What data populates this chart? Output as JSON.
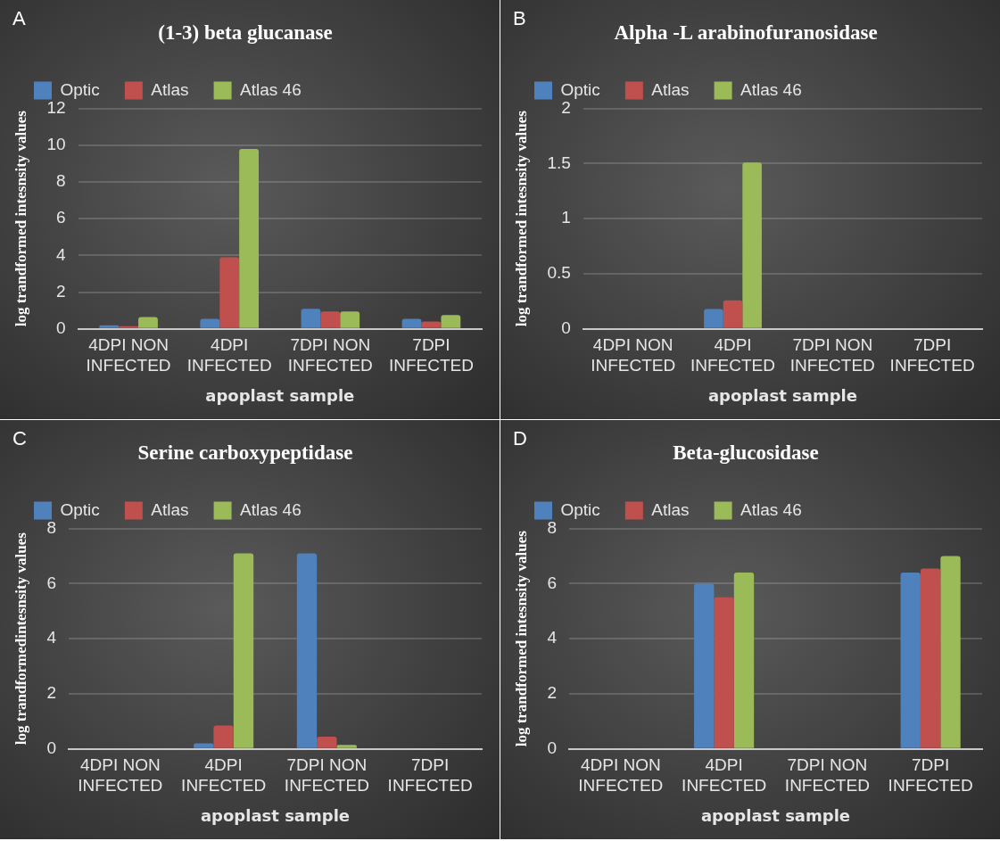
{
  "chart_data": [
    {
      "type": "bar",
      "title": "(1-3) beta glucanase",
      "xlabel": "apoplast sample",
      "ylabel": "log trandformed intesnsity values",
      "annotations": [
        "A"
      ],
      "categories": [
        "4DPI NON INFECTED",
        "4DPI INFECTED",
        "7DPI NON INFECTED",
        "7DPI INFECTED"
      ],
      "series": [
        {
          "name": "Optic",
          "color": "#4f81bd",
          "values": [
            0.2,
            0.55,
            1.1,
            0.55
          ]
        },
        {
          "name": "Atlas",
          "color": "#c0504d",
          "values": [
            0.15,
            3.9,
            0.95,
            0.4
          ]
        },
        {
          "name": "Atlas 46",
          "color": "#9bbb59",
          "values": [
            0.65,
            9.8,
            0.95,
            0.75
          ]
        }
      ],
      "ylim": [
        0,
        12
      ],
      "yticks": [
        0,
        2,
        4,
        6,
        8,
        10,
        12
      ],
      "grid": "y",
      "legend": "top"
    },
    {
      "type": "bar",
      "title": "Alpha -L arabinofuranosidase",
      "xlabel": "apoplast sample",
      "ylabel": "log trandformed intesnsity values",
      "annotations": [
        "B"
      ],
      "categories": [
        "4DPI NON INFECTED",
        "4DPI INFECTED",
        "7DPI NON INFECTED",
        "7DPI INFECTED"
      ],
      "series": [
        {
          "name": "Optic",
          "color": "#4f81bd",
          "values": [
            null,
            0.18,
            null,
            null
          ]
        },
        {
          "name": "Atlas",
          "color": "#c0504d",
          "values": [
            null,
            0.26,
            null,
            null
          ]
        },
        {
          "name": "Atlas 46",
          "color": "#9bbb59",
          "values": [
            null,
            1.51,
            null,
            null
          ]
        }
      ],
      "ylim": [
        0,
        2
      ],
      "yticks": [
        0,
        0.5,
        1,
        1.5,
        2
      ],
      "grid": "y",
      "legend": "top"
    },
    {
      "type": "bar",
      "title": "Serine carboxypeptidase",
      "xlabel": "apoplast sample",
      "ylabel": "log trandformedintesnsity values",
      "annotations": [
        "C"
      ],
      "categories": [
        "4DPI NON INFECTED",
        "4DPI INFECTED",
        "7DPI NON INFECTED",
        "7DPI INFECTED"
      ],
      "series": [
        {
          "name": "Optic",
          "color": "#4f81bd",
          "values": [
            null,
            0.2,
            7.1,
            null
          ]
        },
        {
          "name": "Atlas",
          "color": "#c0504d",
          "values": [
            null,
            0.85,
            0.45,
            null
          ]
        },
        {
          "name": "Atlas 46",
          "color": "#9bbb59",
          "values": [
            null,
            7.1,
            0.15,
            null
          ]
        }
      ],
      "ylim": [
        0,
        8
      ],
      "yticks": [
        0,
        2,
        4,
        6,
        8
      ],
      "grid": "y",
      "legend": "top"
    },
    {
      "type": "bar",
      "title": "Beta-glucosidase",
      "xlabel": "apoplast sample",
      "ylabel": "log trandformed intesnsity values",
      "annotations": [
        "D"
      ],
      "categories": [
        "4DPI NON INFECTED",
        "4DPI INFECTED",
        "7DPI NON INFECTED",
        "7DPI INFECTED"
      ],
      "series": [
        {
          "name": "Optic",
          "color": "#4f81bd",
          "values": [
            null,
            6.0,
            null,
            6.4
          ]
        },
        {
          "name": "Atlas",
          "color": "#c0504d",
          "values": [
            null,
            5.5,
            null,
            6.55
          ]
        },
        {
          "name": "Atlas 46",
          "color": "#9bbb59",
          "values": [
            null,
            6.4,
            null,
            7.0
          ]
        }
      ],
      "ylim": [
        0,
        8
      ],
      "yticks": [
        0,
        2,
        4,
        6,
        8
      ],
      "grid": "y",
      "legend": "top"
    }
  ]
}
